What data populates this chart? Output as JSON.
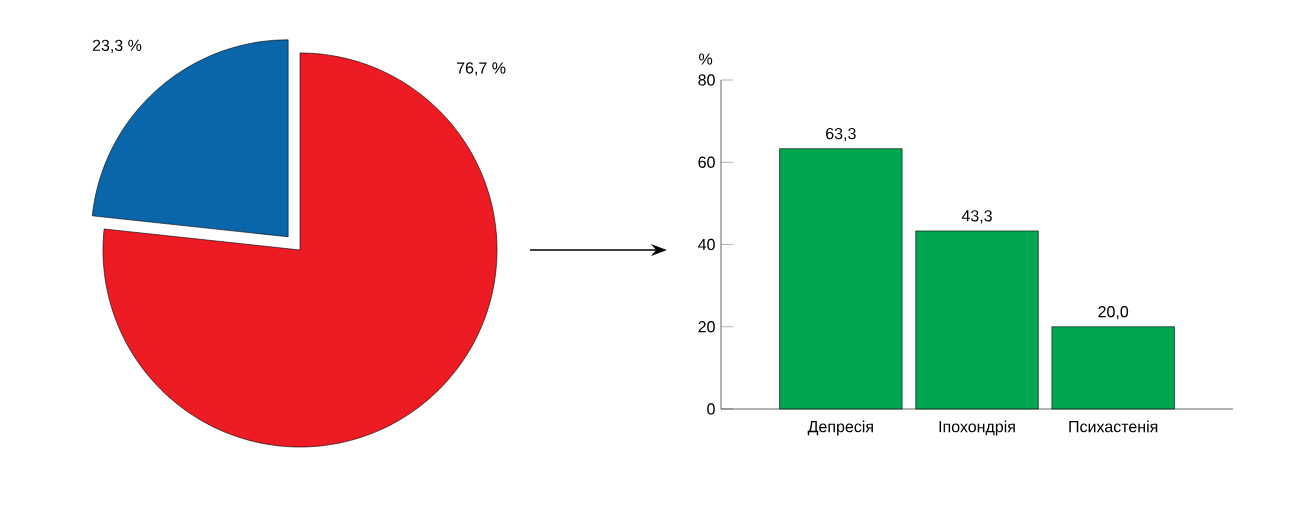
{
  "chart_data": [
    {
      "type": "pie",
      "categories": [
        null,
        null
      ],
      "values": [
        76.7,
        23.3
      ],
      "colors": [
        "#ed1c24",
        "#0a66a8"
      ],
      "value_labels": [
        "76,7 %",
        "23,3 %"
      ]
    },
    {
      "type": "bar",
      "categories": [
        "Депресія",
        "Іпохондрія",
        "Психастенія"
      ],
      "values": [
        63.3,
        43.3,
        20.0
      ],
      "color": "#00a651",
      "value_labels": [
        "63,3",
        "43,3",
        "20,0"
      ],
      "ylabel": "%",
      "ylim": [
        0,
        80
      ],
      "yticks": [
        0,
        20,
        40,
        60,
        80
      ]
    }
  ]
}
